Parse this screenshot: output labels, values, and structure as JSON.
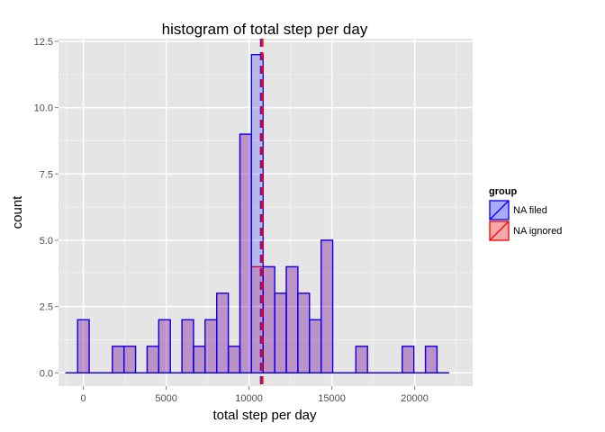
{
  "chart_data": {
    "type": "histogram",
    "title": "histogram of total step per day",
    "xlabel": "total step per day",
    "ylabel": "count",
    "xlim": [
      -1500,
      23500
    ],
    "ylim": [
      -0.5,
      12.6
    ],
    "x_ticks": [
      0,
      5000,
      10000,
      15000,
      20000
    ],
    "x_tick_labels": [
      "0",
      "5000",
      "10000",
      "15000",
      "20000"
    ],
    "y_ticks": [
      0,
      2.5,
      5,
      7.5,
      10,
      12.5
    ],
    "y_tick_labels": [
      "0.0",
      "2.5",
      "5.0",
      "7.5",
      "10.0",
      "12.5"
    ],
    "bin_width": 700,
    "grid": true,
    "legend": {
      "title": "group",
      "position": "right",
      "entries": [
        {
          "label": "NA filed",
          "fill": "#0000ff",
          "stroke": "#0000ff"
        },
        {
          "label": "NA ignored",
          "fill": "#ff0000",
          "stroke": "#ff0000"
        }
      ]
    },
    "series": [
      {
        "name": "NA filed",
        "color": "#0000ff",
        "bins_centers": [
          -700,
          0,
          700,
          1400,
          2100,
          2800,
          3500,
          4200,
          4900,
          5600,
          6300,
          7000,
          7700,
          8400,
          9100,
          9800,
          10500,
          11200,
          11900,
          12600,
          13300,
          14000,
          14700,
          15400,
          16100,
          16800,
          17500,
          18200,
          18900,
          19600,
          20300,
          21000,
          21700
        ],
        "counts": [
          0,
          2,
          0,
          0,
          1,
          1,
          0,
          1,
          2,
          0,
          2,
          1,
          2,
          3,
          1,
          9,
          12,
          4,
          3,
          4,
          3,
          2,
          5,
          0,
          0,
          1,
          0,
          0,
          0,
          1,
          0,
          1,
          0
        ]
      },
      {
        "name": "NA ignored",
        "color": "#ff0000",
        "bins_centers": [
          -700,
          0,
          700,
          1400,
          2100,
          2800,
          3500,
          4200,
          4900,
          5600,
          6300,
          7000,
          7700,
          8400,
          9100,
          9800,
          10500,
          11200,
          11900,
          12600,
          13300,
          14000,
          14700,
          15400,
          16100,
          16800,
          17500,
          18200,
          18900,
          19600,
          20300,
          21000,
          21700
        ],
        "counts": [
          0,
          2,
          0,
          0,
          1,
          1,
          0,
          1,
          2,
          0,
          2,
          1,
          2,
          3,
          1,
          9,
          4,
          4,
          3,
          4,
          3,
          2,
          5,
          0,
          0,
          1,
          0,
          0,
          0,
          1,
          0,
          1,
          0
        ]
      }
    ],
    "mean_lines": [
      {
        "series": "NA filed",
        "x": 10766,
        "color": "#0000ff",
        "style": "dashed"
      },
      {
        "series": "NA ignored",
        "x": 10766,
        "color": "#ff0000",
        "style": "dashed"
      }
    ]
  }
}
